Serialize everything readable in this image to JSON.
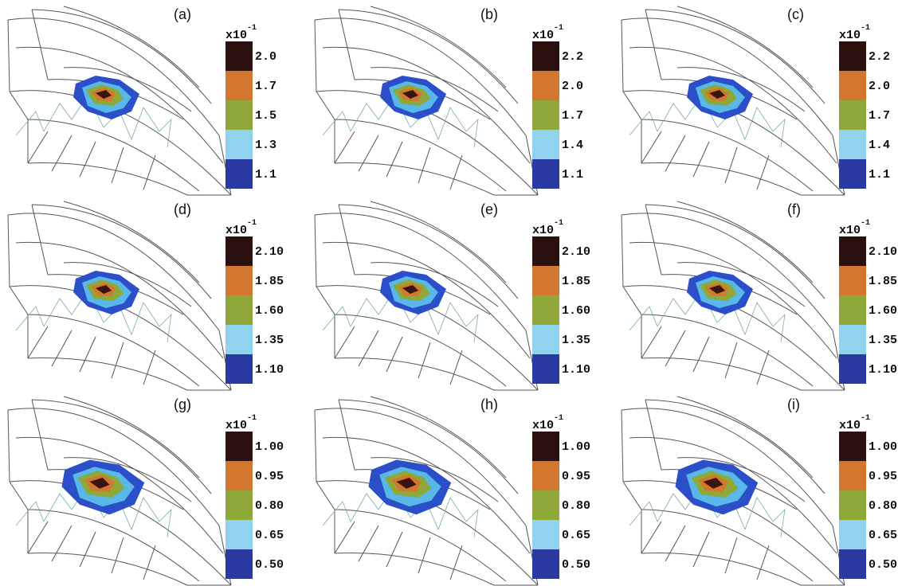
{
  "panels": [
    {
      "label": "(a)",
      "scale_base": "x10",
      "scale_exp": "-1",
      "levels": [
        "2.0",
        "1.7",
        "1.5",
        "1.3",
        "1.1"
      ]
    },
    {
      "label": "(b)",
      "scale_base": "x10",
      "scale_exp": "-1",
      "levels": [
        "2.2",
        "2.0",
        "1.7",
        "1.4",
        "1.1"
      ]
    },
    {
      "label": "(c)",
      "scale_base": "x10",
      "scale_exp": "-1",
      "levels": [
        "2.2",
        "2.0",
        "1.7",
        "1.4",
        "1.1"
      ]
    },
    {
      "label": "(d)",
      "scale_base": "x10",
      "scale_exp": "-1",
      "levels": [
        "2.10",
        "1.85",
        "1.60",
        "1.35",
        "1.10"
      ]
    },
    {
      "label": "(e)",
      "scale_base": "x10",
      "scale_exp": "-1",
      "levels": [
        "2.10",
        "1.85",
        "1.60",
        "1.35",
        "1.10"
      ]
    },
    {
      "label": "(f)",
      "scale_base": "x10",
      "scale_exp": "-1",
      "levels": [
        "2.10",
        "1.85",
        "1.60",
        "1.35",
        "1.10"
      ]
    },
    {
      "label": "(g)",
      "scale_base": "x10",
      "scale_exp": "-1",
      "levels": [
        "1.00",
        "0.95",
        "0.80",
        "0.65",
        "0.50"
      ]
    },
    {
      "label": "(h)",
      "scale_base": "x10",
      "scale_exp": "-1",
      "levels": [
        "1.00",
        "0.95",
        "0.80",
        "0.65",
        "0.50"
      ]
    },
    {
      "label": "(i)",
      "scale_base": "x10",
      "scale_exp": "-1",
      "levels": [
        "1.00",
        "0.95",
        "0.80",
        "0.65",
        "0.50"
      ]
    }
  ]
}
